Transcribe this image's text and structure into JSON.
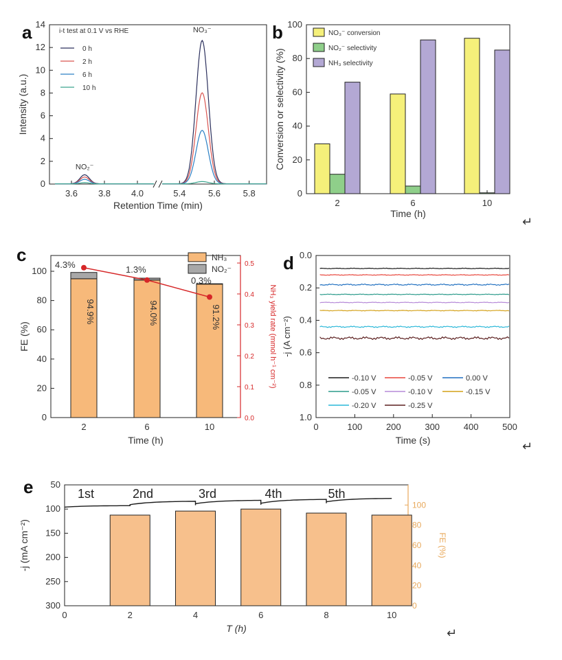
{
  "chart_data": [
    {
      "panel": "a",
      "type": "line",
      "annotation": "i-t test at 0.1 V vs RHE",
      "xlabel": "Retention Time (min)",
      "ylabel": "Intensity (a.u.)",
      "ylim": [
        0,
        14
      ],
      "xticks": [
        "3.6",
        "3.8",
        "4.0",
        "5.4",
        "5.6",
        "5.8"
      ],
      "yticks": [
        "0",
        "2",
        "4",
        "6",
        "8",
        "10",
        "12",
        "14"
      ],
      "peak_labels": [
        "NO₂⁻",
        "NO₃⁻"
      ],
      "nitrite_peak_time": 3.68,
      "nitrate_peak_time": 5.53,
      "series": [
        {
          "name": "0 h",
          "color": "#2b2f5c",
          "nitrite_peak": 0.8,
          "nitrate_peak": 12.6
        },
        {
          "name": "2 h",
          "color": "#d9534f",
          "nitrite_peak": 0.6,
          "nitrate_peak": 8.0
        },
        {
          "name": "6 h",
          "color": "#2a7fc4",
          "nitrite_peak": 0.4,
          "nitrate_peak": 4.7
        },
        {
          "name": "10 h",
          "color": "#3aa58e",
          "nitrite_peak": 0.1,
          "nitrate_peak": 0.2
        }
      ]
    },
    {
      "panel": "b",
      "type": "bar",
      "categories": [
        "2",
        "6",
        "10"
      ],
      "xlabel": "Time (h)",
      "ylabel": "Conversion or selectivity (%)",
      "ylim": [
        0,
        100
      ],
      "yticks": [
        "0",
        "20",
        "40",
        "60",
        "80",
        "100"
      ],
      "series": [
        {
          "name": "NO₃⁻ conversion",
          "color": "#f5f07a",
          "values": [
            29.5,
            59,
            92
          ]
        },
        {
          "name": "NO₂⁻ selectivity",
          "color": "#8fcf8a",
          "values": [
            11.5,
            4.5,
            0.5
          ]
        },
        {
          "name": "NH₃ selectivity",
          "color": "#b3a8d4",
          "values": [
            66,
            91,
            85
          ]
        }
      ]
    },
    {
      "panel": "c",
      "type": "bar",
      "categories": [
        "2",
        "6",
        "10"
      ],
      "xlabel": "Time (h)",
      "ylabel": "FE (%)",
      "y2label": "NH₃ yield rate (mmol h⁻¹ cm⁻²)",
      "ylim": [
        0,
        110
      ],
      "y2lim": [
        0,
        0.5
      ],
      "yticks": [
        "0",
        "20",
        "40",
        "60",
        "80",
        "100"
      ],
      "y2ticks": [
        "0.0",
        "0.1",
        "0.2",
        "0.3",
        "0.4",
        "0.5"
      ],
      "series": [
        {
          "name": "NH₃",
          "color": "#f7b97a",
          "values": [
            94.9,
            94.0,
            91.2
          ],
          "labels": [
            "94.9%",
            "94.0%",
            "91.2%"
          ]
        },
        {
          "name": "NO₂⁻",
          "color": "#a8a8a8",
          "values": [
            4.3,
            1.3,
            0.3
          ],
          "labels": [
            "4.3%",
            "1.3%",
            "0.3%"
          ]
        }
      ],
      "yield_rate": {
        "color": "#d62728",
        "values": [
          0.485,
          0.445,
          0.39
        ]
      }
    },
    {
      "panel": "d",
      "type": "line",
      "xlabel": "Time (s)",
      "ylabel": "-j (A cm⁻²)",
      "xlim": [
        0,
        500
      ],
      "ylim": [
        0,
        1.0
      ],
      "xticks": [
        "0",
        "100",
        "200",
        "300",
        "400",
        "500"
      ],
      "yticks": [
        "0.0",
        "0.2",
        "0.4",
        "0.6",
        "0.8",
        "1.0"
      ],
      "series": [
        {
          "name": "-0.10 V",
          "color": "#1a1a1a",
          "value": 0.08,
          "noise": 0.002
        },
        {
          "name": "-0.05 V",
          "color": "#e8443a",
          "value": 0.12,
          "noise": 0.002
        },
        {
          "name": "0.00 V",
          "color": "#1f6fc0",
          "value": 0.18,
          "noise": 0.004
        },
        {
          "name": "-0.05 V",
          "color": "#2a9a8a",
          "value": 0.24,
          "noise": 0.002
        },
        {
          "name": "-0.10 V",
          "color": "#b68ad8",
          "value": 0.29,
          "noise": 0.002
        },
        {
          "name": "-0.15 V",
          "color": "#d4a017",
          "value": 0.34,
          "noise": 0.002
        },
        {
          "name": "-0.20 V",
          "color": "#29b7d8",
          "value": 0.44,
          "noise": 0.004
        },
        {
          "name": "-0.25 V",
          "color": "#5a1e1e",
          "value": 0.51,
          "noise": 0.008
        }
      ]
    },
    {
      "panel": "e",
      "type": "bar",
      "xlabel": "T (h)",
      "ylabel": "-j (mA cm⁻²)",
      "y2label": "FE (%)",
      "xlim": [
        0,
        10.5
      ],
      "ylim": [
        50,
        300
      ],
      "y2lim": [
        0,
        120
      ],
      "xticks": [
        "0",
        "2",
        "4",
        "6",
        "8",
        "10"
      ],
      "yticks": [
        "50",
        "100",
        "150",
        "200",
        "250",
        "300"
      ],
      "y2ticks": [
        "0",
        "20",
        "40",
        "60",
        "80",
        "100"
      ],
      "cycles": [
        "1st",
        "2nd",
        "3rd",
        "4th",
        "5th"
      ],
      "fe_values": [
        90,
        94,
        96,
        92,
        90
      ],
      "fe_centers": [
        2,
        4,
        6,
        8,
        10
      ],
      "current_segments": [
        [
          96,
          93
        ],
        [
          91,
          84
        ],
        [
          89,
          82
        ],
        [
          88,
          80
        ],
        [
          85,
          78
        ]
      ],
      "line_color": "#1a1a1a",
      "bar_color": "#f7c08c",
      "axis2_color": "#e8a85a"
    }
  ],
  "panel_letters": [
    "a",
    "b",
    "c",
    "d",
    "e"
  ]
}
